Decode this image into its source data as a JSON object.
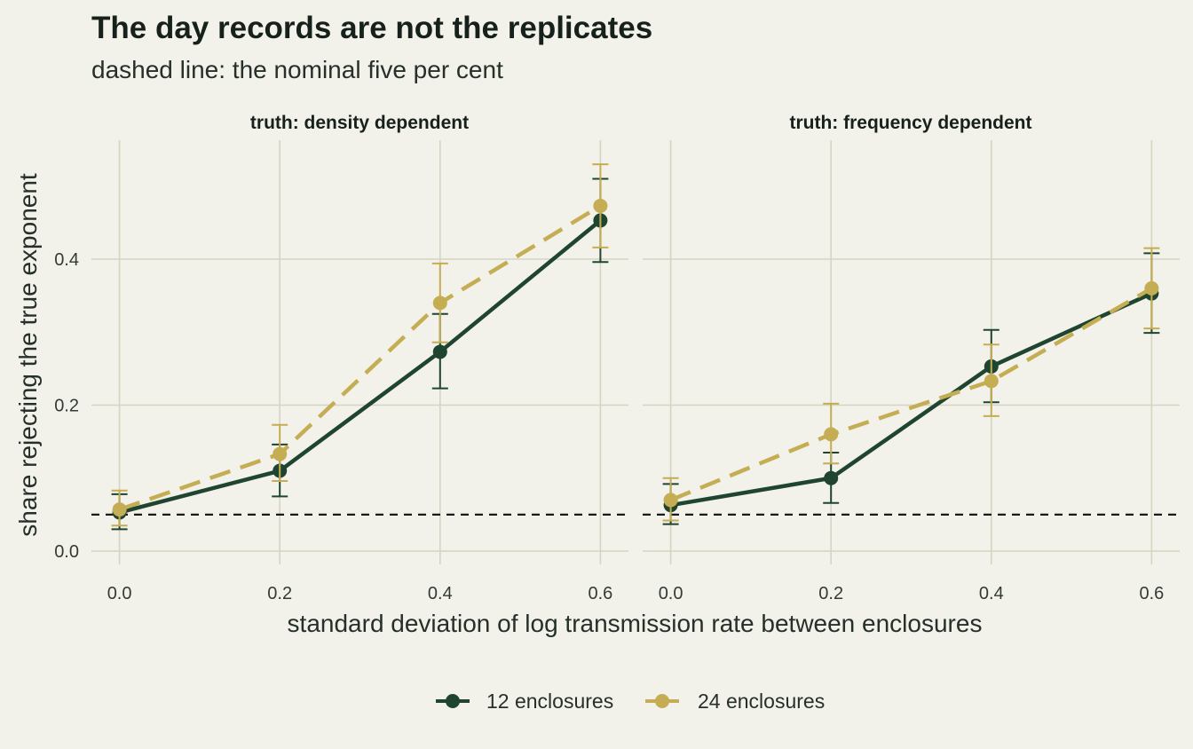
{
  "chart_data": {
    "type": "line",
    "title": "The day records are not the replicates",
    "subtitle": "dashed line: the nominal five per cent",
    "xlabel": "standard deviation of log transmission rate between enclosures",
    "ylabel": "share rejecting the true exponent",
    "x_ticks": [
      "0.0",
      "0.2",
      "0.4",
      "0.6"
    ],
    "y_ticks": [
      "0.0",
      "0.2",
      "0.4"
    ],
    "xlim": [
      -0.035,
      0.635
    ],
    "ylim": [
      0,
      0.5
    ],
    "reference_line": 0.05,
    "grid": true,
    "legend_position": "bottom",
    "colors": {
      "12 enclosures": "#1f4430",
      "24 enclosures": "#c4ad52",
      "reference": "#1a1a1a"
    },
    "panels": [
      {
        "title": "truth: density dependent",
        "series": [
          {
            "name": "12 enclosures",
            "x": [
              0.0,
              0.2,
              0.4,
              0.6
            ],
            "y": [
              0.053,
              0.11,
              0.273,
              0.453
            ],
            "lower": [
              0.03,
              0.075,
              0.223,
              0.396
            ],
            "upper": [
              0.078,
              0.146,
              0.325,
              0.51
            ]
          },
          {
            "name": "24 enclosures",
            "x": [
              0.0,
              0.2,
              0.4,
              0.6
            ],
            "y": [
              0.057,
              0.133,
              0.34,
              0.473
            ],
            "lower": [
              0.035,
              0.096,
              0.286,
              0.416
            ],
            "upper": [
              0.083,
              0.173,
              0.394,
              0.53
            ]
          }
        ]
      },
      {
        "title": "truth: frequency dependent",
        "series": [
          {
            "name": "12 enclosures",
            "x": [
              0.0,
              0.2,
              0.4,
              0.6
            ],
            "y": [
              0.063,
              0.1,
              0.253,
              0.353
            ],
            "lower": [
              0.037,
              0.066,
              0.204,
              0.299
            ],
            "upper": [
              0.092,
              0.135,
              0.303,
              0.408
            ]
          },
          {
            "name": "24 enclosures",
            "x": [
              0.0,
              0.2,
              0.4,
              0.6
            ],
            "y": [
              0.07,
              0.16,
              0.233,
              0.36
            ],
            "lower": [
              0.042,
              0.12,
              0.185,
              0.305
            ],
            "upper": [
              0.1,
              0.202,
              0.283,
              0.415
            ]
          }
        ]
      }
    ]
  }
}
